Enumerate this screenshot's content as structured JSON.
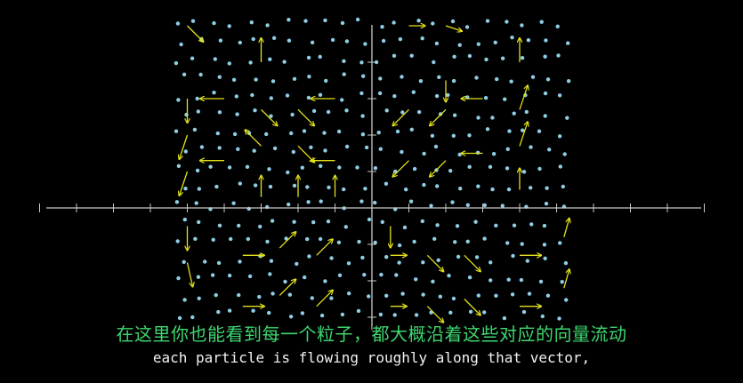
{
  "video": {
    "subtitle_cn": "在这里你也能看到每一个粒子，都大概沿着这些对应的向量流动",
    "subtitle_en": "each particle is flowing roughly along that vector,"
  },
  "scene": {
    "background": "#000000",
    "axis_color": "#c8c8c8",
    "particle_color": "#8ecfe6",
    "vector_color": "#e4e21a",
    "subtitle_cn_color": "#3ed66f",
    "subtitle_en_color": "#f2f2f2",
    "x_ticks": 20,
    "y_ticks": 10
  },
  "vectors": [
    {
      "x": -5,
      "y": 5,
      "dx": 0.6,
      "dy": -0.6
    },
    {
      "x": -5,
      "y": 3,
      "dx": 0,
      "dy": -0.9
    },
    {
      "x": -5,
      "y": 2,
      "dx": -0.3,
      "dy": -0.9
    },
    {
      "x": -5,
      "y": 1,
      "dx": -0.3,
      "dy": -0.9
    },
    {
      "x": -4,
      "y": 3,
      "dx": -0.9,
      "dy": 0
    },
    {
      "x": -4,
      "y": 1.3,
      "dx": -0.9,
      "dy": 0
    },
    {
      "x": -3,
      "y": 4,
      "dx": 0,
      "dy": 0.9
    },
    {
      "x": -3,
      "y": 2.7,
      "dx": 0.6,
      "dy": -0.6
    },
    {
      "x": -3,
      "y": 1.7,
      "dx": -0.6,
      "dy": 0.6
    },
    {
      "x": -3,
      "y": 0.3,
      "dx": 0,
      "dy": 0.8
    },
    {
      "x": -2,
      "y": 2.7,
      "dx": 0.6,
      "dy": -0.6
    },
    {
      "x": -2,
      "y": 1.7,
      "dx": 0.6,
      "dy": -0.6
    },
    {
      "x": -2,
      "y": 0.3,
      "dx": 0,
      "dy": 0.8
    },
    {
      "x": -1,
      "y": 3,
      "dx": -0.9,
      "dy": 0
    },
    {
      "x": -1,
      "y": 1.3,
      "dx": -0.9,
      "dy": 0
    },
    {
      "x": -1,
      "y": 0.3,
      "dx": 0,
      "dy": 0.8
    },
    {
      "x": 1,
      "y": 5,
      "dx": 0.6,
      "dy": 0
    },
    {
      "x": 1,
      "y": 2.7,
      "dx": -0.6,
      "dy": -0.6
    },
    {
      "x": 1,
      "y": 1.3,
      "dx": -0.6,
      "dy": -0.6
    },
    {
      "x": 2,
      "y": 5,
      "dx": 0.6,
      "dy": -0.2
    },
    {
      "x": 2,
      "y": 3.5,
      "dx": 0,
      "dy": -0.8
    },
    {
      "x": 2,
      "y": 2.7,
      "dx": -0.6,
      "dy": -0.6
    },
    {
      "x": 2,
      "y": 1.3,
      "dx": -0.6,
      "dy": -0.6
    },
    {
      "x": 3,
      "y": 3,
      "dx": -0.8,
      "dy": 0
    },
    {
      "x": 3,
      "y": 1.5,
      "dx": -0.8,
      "dy": 0
    },
    {
      "x": 4,
      "y": 4,
      "dx": 0,
      "dy": 0.9
    },
    {
      "x": 4,
      "y": 2.7,
      "dx": 0.3,
      "dy": 0.9
    },
    {
      "x": 4,
      "y": 1.7,
      "dx": 0.3,
      "dy": 0.9
    },
    {
      "x": 4,
      "y": 0.5,
      "dx": 0,
      "dy": 0.8
    },
    {
      "x": -5,
      "y": -0.5,
      "dx": 0,
      "dy": -0.9
    },
    {
      "x": -5,
      "y": -1.5,
      "dx": 0.2,
      "dy": -0.9
    },
    {
      "x": -3.5,
      "y": -1.3,
      "dx": 0.8,
      "dy": 0
    },
    {
      "x": -3.5,
      "y": -2.7,
      "dx": 0.8,
      "dy": 0
    },
    {
      "x": -2.5,
      "y": -1.1,
      "dx": 0.6,
      "dy": 0.6
    },
    {
      "x": -2.5,
      "y": -2.4,
      "dx": 0.6,
      "dy": 0.6
    },
    {
      "x": -1.5,
      "y": -1.3,
      "dx": 0.6,
      "dy": 0.6
    },
    {
      "x": -1.5,
      "y": -2.7,
      "dx": 0.6,
      "dy": 0.6
    },
    {
      "x": 0.5,
      "y": -0.5,
      "dx": 0,
      "dy": -0.8
    },
    {
      "x": 0.5,
      "y": -1.3,
      "dx": 0.6,
      "dy": 0
    },
    {
      "x": 0.5,
      "y": -2.7,
      "dx": 0.6,
      "dy": 0
    },
    {
      "x": 1.5,
      "y": -1.3,
      "dx": 0.6,
      "dy": -0.6
    },
    {
      "x": 1.5,
      "y": -2.7,
      "dx": 0.6,
      "dy": -0.6
    },
    {
      "x": 2.5,
      "y": -1.3,
      "dx": 0.6,
      "dy": -0.6
    },
    {
      "x": 2.5,
      "y": -2.5,
      "dx": 0.6,
      "dy": -0.6
    },
    {
      "x": 4,
      "y": -1.3,
      "dx": 0.8,
      "dy": 0
    },
    {
      "x": 4,
      "y": -2.7,
      "dx": 0.8,
      "dy": 0
    },
    {
      "x": 5.2,
      "y": -0.8,
      "dx": 0.2,
      "dy": 0.7
    },
    {
      "x": 5.2,
      "y": -2.2,
      "dx": 0.2,
      "dy": 0.7
    }
  ]
}
